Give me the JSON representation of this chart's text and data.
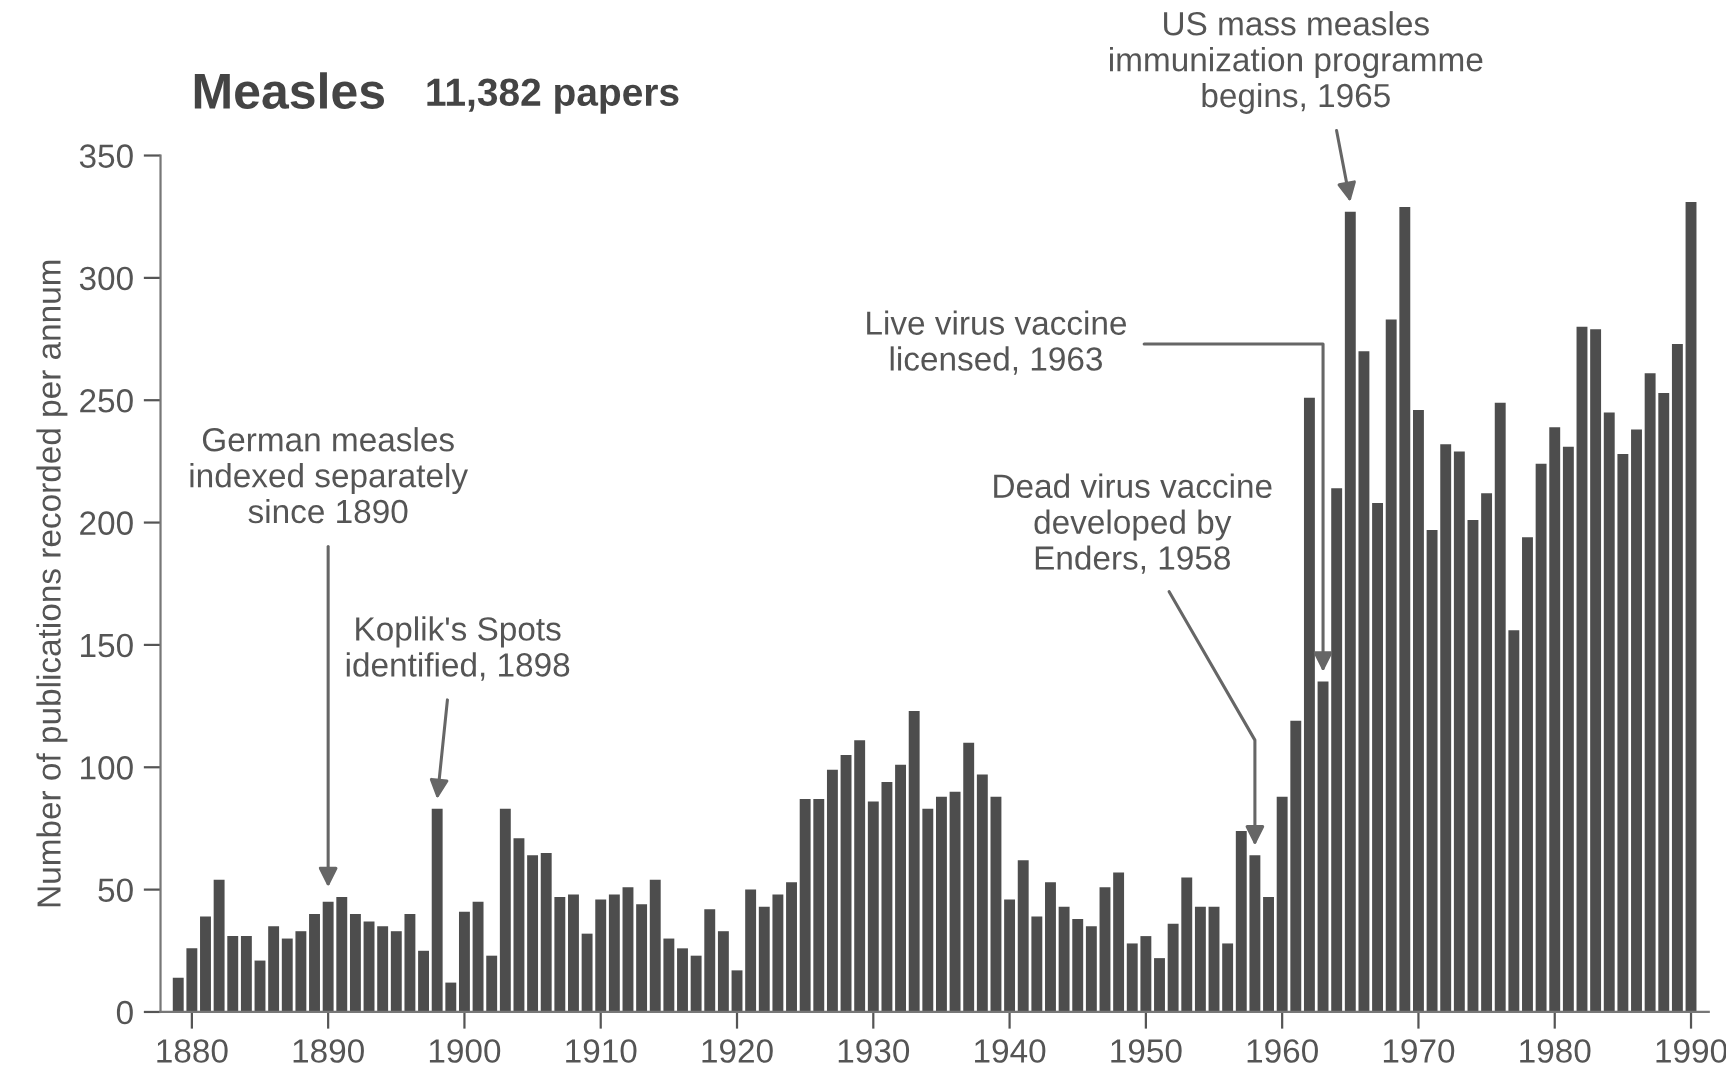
{
  "chart_data": {
    "type": "bar",
    "title": "Measles",
    "subtitle": "11,382 papers",
    "ylabel": "Number of publications recorded per annum",
    "x": [
      1879,
      1880,
      1881,
      1882,
      1883,
      1884,
      1885,
      1886,
      1887,
      1888,
      1889,
      1890,
      1891,
      1892,
      1893,
      1894,
      1895,
      1896,
      1897,
      1898,
      1899,
      1900,
      1901,
      1902,
      1903,
      1904,
      1905,
      1906,
      1907,
      1908,
      1909,
      1910,
      1911,
      1912,
      1913,
      1914,
      1915,
      1916,
      1917,
      1918,
      1919,
      1920,
      1921,
      1922,
      1923,
      1924,
      1925,
      1926,
      1927,
      1928,
      1929,
      1930,
      1931,
      1932,
      1933,
      1934,
      1935,
      1936,
      1937,
      1938,
      1939,
      1940,
      1941,
      1942,
      1943,
      1944,
      1945,
      1946,
      1947,
      1948,
      1949,
      1950,
      1951,
      1952,
      1953,
      1954,
      1955,
      1956,
      1957,
      1958,
      1959,
      1960,
      1961,
      1962,
      1963,
      1964,
      1965,
      1966,
      1967,
      1968,
      1969,
      1970,
      1971,
      1972,
      1973,
      1974,
      1975,
      1976,
      1977,
      1978,
      1979,
      1980,
      1981,
      1982,
      1983,
      1984,
      1985,
      1986,
      1987,
      1988,
      1989,
      1990
    ],
    "values": [
      14,
      26,
      39,
      54,
      31,
      31,
      21,
      35,
      30,
      33,
      40,
      45,
      47,
      40,
      37,
      35,
      33,
      40,
      25,
      83,
      12,
      41,
      45,
      23,
      83,
      71,
      64,
      65,
      47,
      48,
      32,
      46,
      48,
      51,
      44,
      54,
      30,
      26,
      23,
      42,
      33,
      17,
      50,
      43,
      48,
      53,
      87,
      87,
      99,
      105,
      111,
      86,
      94,
      101,
      123,
      83,
      88,
      90,
      110,
      97,
      88,
      46,
      62,
      39,
      53,
      43,
      38,
      35,
      51,
      57,
      28,
      31,
      22,
      36,
      55,
      43,
      43,
      28,
      74,
      64,
      47,
      88,
      119,
      251,
      135,
      214,
      327,
      270,
      208,
      283,
      329,
      246,
      197,
      232,
      229,
      201,
      212,
      249,
      156,
      194,
      224,
      239,
      231,
      280,
      279,
      245,
      228,
      238,
      261,
      253,
      273,
      331
    ],
    "color": "#4d4d4d",
    "xlim": [
      1877.7,
      1991.3
    ],
    "xticks": [
      1880,
      1890,
      1900,
      1910,
      1920,
      1930,
      1940,
      1950,
      1960,
      1970,
      1980,
      1990
    ],
    "ylim": [
      0,
      350
    ],
    "yticks": [
      0,
      50,
      100,
      150,
      200,
      250,
      300,
      350
    ],
    "grid": false,
    "legend": false,
    "annotations": [
      {
        "text": "German measles\nindexed separately\nsince 1890",
        "x": 1890,
        "y": 47
      },
      {
        "text": "Koplik's Spots\nidentified, 1898",
        "x": 1898,
        "y": 83
      },
      {
        "text": "Dead virus vaccine\ndeveloped by\nEnders, 1958",
        "x": 1958,
        "y": 64
      },
      {
        "text": "Live virus vaccine\nlicensed, 1963",
        "x": 1963,
        "y": 135
      },
      {
        "text": "US mass measles\nimmunization programme\nbegins, 1965",
        "x": 1965,
        "y": 327
      }
    ]
  }
}
